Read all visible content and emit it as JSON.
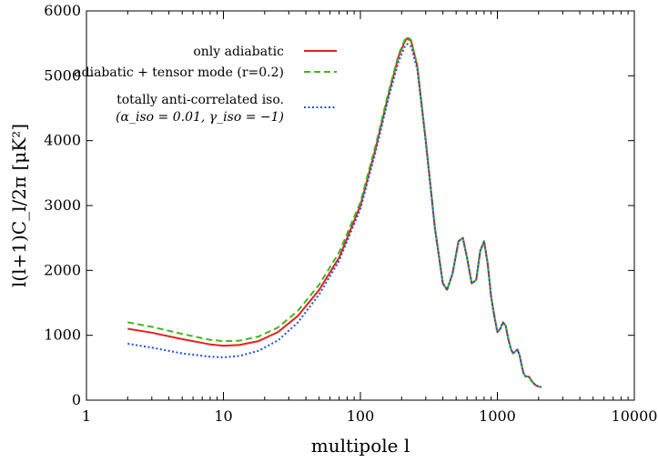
{
  "chart_data": {
    "type": "line",
    "title": "",
    "xlabel": "multipole l",
    "ylabel": "l(l+1)C_l/2π [μK²]",
    "xscale": "log",
    "xlim": [
      1,
      10000
    ],
    "ylim": [
      0,
      6000
    ],
    "x_ticks": [
      1,
      10,
      100,
      1000,
      10000
    ],
    "x_tick_labels": [
      "1",
      "10",
      "100",
      "1000",
      "10000"
    ],
    "y_ticks": [
      0,
      1000,
      2000,
      3000,
      4000,
      5000,
      6000
    ],
    "y_tick_labels": [
      "0",
      "1000",
      "2000",
      "3000",
      "4000",
      "5000",
      "6000"
    ],
    "legend_position": "top-left",
    "series": [
      {
        "name": "only adiabatic",
        "color": "#e8201a",
        "dash": "solid",
        "x": [
          2,
          3,
          5,
          8,
          10,
          13,
          18,
          25,
          35,
          50,
          70,
          100,
          130,
          160,
          190,
          210,
          220,
          235,
          260,
          300,
          350,
          400,
          430,
          470,
          520,
          560,
          600,
          650,
          700,
          750,
          800,
          850,
          900,
          950,
          1000,
          1050,
          1100,
          1150,
          1200,
          1250,
          1300,
          1350,
          1400,
          1450,
          1500,
          1550,
          1600,
          1700,
          1800,
          1900,
          2000,
          2100
        ],
        "y": [
          1100,
          1040,
          940,
          860,
          840,
          850,
          910,
          1050,
          1300,
          1700,
          2200,
          3000,
          3900,
          4700,
          5300,
          5520,
          5580,
          5530,
          5150,
          4000,
          2650,
          1800,
          1700,
          1950,
          2450,
          2500,
          2200,
          1800,
          1850,
          2300,
          2450,
          2100,
          1600,
          1300,
          1050,
          1100,
          1200,
          1150,
          950,
          800,
          720,
          750,
          780,
          700,
          550,
          420,
          370,
          360,
          280,
          230,
          210,
          200
        ]
      },
      {
        "name": "adiabatic + tensor mode (r=0.2)",
        "color": "#3fb81e",
        "dash": "dashed",
        "x": [
          2,
          3,
          5,
          8,
          10,
          13,
          18,
          25,
          35,
          50,
          70,
          100,
          130,
          160,
          190,
          210,
          220,
          235,
          260,
          300,
          350,
          400,
          430,
          470,
          520,
          560,
          600,
          650,
          700,
          750,
          800,
          850,
          900,
          950,
          1000,
          1050,
          1100,
          1150,
          1200,
          1250,
          1300,
          1350,
          1400,
          1450,
          1500,
          1550,
          1600,
          1700,
          1800,
          1900,
          2000,
          2100
        ],
        "y": [
          1200,
          1130,
          1020,
          930,
          910,
          915,
          980,
          1120,
          1380,
          1780,
          2280,
          3050,
          3950,
          4740,
          5330,
          5550,
          5600,
          5550,
          5160,
          4010,
          2660,
          1800,
          1700,
          1950,
          2450,
          2500,
          2200,
          1800,
          1850,
          2300,
          2450,
          2100,
          1600,
          1300,
          1050,
          1100,
          1200,
          1150,
          950,
          800,
          720,
          750,
          780,
          700,
          550,
          420,
          370,
          360,
          280,
          230,
          210,
          200
        ]
      },
      {
        "name": "totally anti-correlated iso.",
        "name_line2": "(α_iso = 0.01,  γ_iso = −1)",
        "color": "#1f4fd8",
        "dash": "dotted",
        "x": [
          2,
          3,
          5,
          8,
          10,
          13,
          18,
          25,
          35,
          50,
          70,
          100,
          130,
          160,
          190,
          210,
          220,
          235,
          260,
          300,
          350,
          400,
          430,
          470,
          520,
          560,
          600,
          650,
          700,
          750,
          800,
          850,
          900,
          950,
          1000,
          1050,
          1100,
          1150,
          1200,
          1250,
          1300,
          1350,
          1400,
          1450,
          1500,
          1550,
          1600,
          1700,
          1800,
          1900,
          2000,
          2100
        ],
        "y": [
          870,
          810,
          720,
          670,
          660,
          680,
          760,
          920,
          1200,
          1630,
          2150,
          2950,
          3850,
          4650,
          5220,
          5440,
          5490,
          5450,
          5100,
          3980,
          2640,
          1800,
          1700,
          1950,
          2450,
          2500,
          2200,
          1800,
          1850,
          2300,
          2450,
          2100,
          1600,
          1300,
          1050,
          1100,
          1200,
          1150,
          950,
          800,
          720,
          750,
          780,
          700,
          550,
          420,
          370,
          360,
          280,
          230,
          210,
          200
        ]
      }
    ]
  }
}
